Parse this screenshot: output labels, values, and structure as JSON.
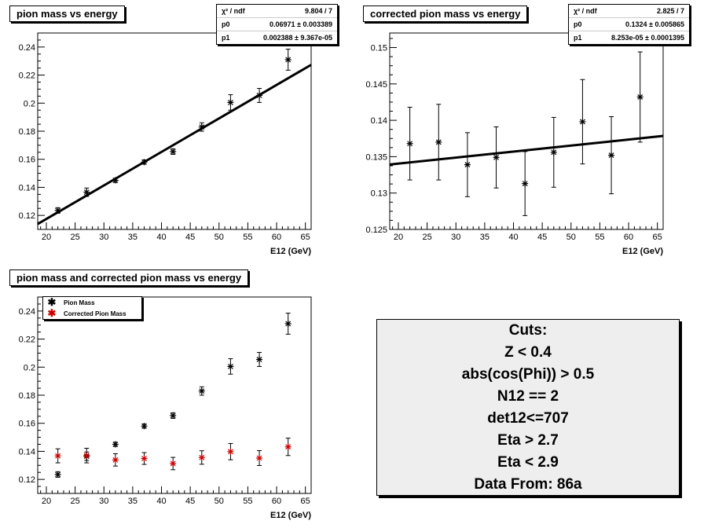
{
  "chart_data": [
    {
      "id": "chart1",
      "type": "scatter",
      "title": "pion mass vs energy",
      "xlabel": "E12 (GeV)",
      "ylabel": "",
      "xlim": [
        18.5,
        66
      ],
      "ylim": [
        0.11,
        0.25
      ],
      "xticks": [
        20,
        25,
        30,
        35,
        40,
        45,
        50,
        55,
        60,
        65
      ],
      "yticks": [
        0.12,
        0.14,
        0.16,
        0.18,
        0.2,
        0.22,
        0.24
      ],
      "series": [
        {
          "color": "#000000",
          "x": [
            22,
            27,
            32,
            37,
            42,
            47,
            52,
            57,
            62
          ],
          "y": [
            0.1235,
            0.1365,
            0.145,
            0.158,
            0.1655,
            0.183,
            0.2005,
            0.2055,
            0.231
          ],
          "err": [
            0.002,
            0.003,
            0.0015,
            0.0015,
            0.002,
            0.003,
            0.0055,
            0.005,
            0.0075
          ]
        }
      ],
      "fit": {
        "p0": 0.06971,
        "p1": 0.002388
      },
      "stats": [
        {
          "label": "χ² / ndf",
          "value": "9.804 / 7"
        },
        {
          "label": "p0",
          "value": "0.06971 ± 0.003389"
        },
        {
          "label": "p1",
          "value": "0.002388 ± 9.367e-05"
        }
      ]
    },
    {
      "id": "chart2",
      "type": "scatter",
      "title": "corrected pion mass vs energy",
      "xlabel": "E12 (GeV)",
      "ylabel": "",
      "xlim": [
        18.5,
        66
      ],
      "ylim": [
        0.125,
        0.152
      ],
      "xticks": [
        20,
        25,
        30,
        35,
        40,
        45,
        50,
        55,
        60,
        65
      ],
      "yticks": [
        0.125,
        0.13,
        0.135,
        0.14,
        0.145,
        0.15
      ],
      "series": [
        {
          "color": "#000000",
          "x": [
            22,
            27,
            32,
            37,
            42,
            47,
            52,
            57,
            62
          ],
          "y": [
            0.1368,
            0.137,
            0.1339,
            0.1349,
            0.1313,
            0.1356,
            0.1398,
            0.1352,
            0.1432
          ],
          "err": [
            0.005,
            0.0052,
            0.0044,
            0.0042,
            0.0044,
            0.0048,
            0.0058,
            0.0053,
            0.0062
          ]
        }
      ],
      "fit": {
        "p0": 0.1324,
        "p1": 8.253e-05
      },
      "stats": [
        {
          "label": "χ² / ndf",
          "value": "2.825 / 7"
        },
        {
          "label": "p0",
          "value": "0.1324 ± 0.005865"
        },
        {
          "label": "p1",
          "value": "8.253e-05 ± 0.0001395"
        }
      ]
    },
    {
      "id": "chart3",
      "type": "scatter",
      "title": "pion mass and corrected pion mass vs energy",
      "xlabel": "E12 (GeV)",
      "ylabel": "",
      "xlim": [
        18.5,
        66
      ],
      "ylim": [
        0.11,
        0.25
      ],
      "xticks": [
        20,
        25,
        30,
        35,
        40,
        45,
        50,
        55,
        60,
        65
      ],
      "yticks": [
        0.12,
        0.14,
        0.16,
        0.18,
        0.2,
        0.22,
        0.24
      ],
      "series": [
        {
          "name": "Pion Mass",
          "color": "#000000",
          "x": [
            22,
            27,
            32,
            37,
            42,
            47,
            52,
            57,
            62
          ],
          "y": [
            0.1235,
            0.1365,
            0.145,
            0.158,
            0.1655,
            0.183,
            0.2005,
            0.2055,
            0.231
          ],
          "err": [
            0.002,
            0.003,
            0.0015,
            0.0015,
            0.002,
            0.003,
            0.0055,
            0.005,
            0.0075
          ]
        },
        {
          "name": "Corrected Pion Mass",
          "color": "#cc0000",
          "x": [
            22,
            27,
            32,
            37,
            42,
            47,
            52,
            57,
            62
          ],
          "y": [
            0.1368,
            0.137,
            0.1339,
            0.1349,
            0.1313,
            0.1356,
            0.1398,
            0.1352,
            0.1432
          ],
          "err": [
            0.005,
            0.0052,
            0.0044,
            0.0042,
            0.0044,
            0.0048,
            0.0058,
            0.0053,
            0.0062
          ]
        }
      ],
      "legend": "top-left"
    }
  ],
  "cuts": {
    "lines": [
      "Cuts:",
      "Z < 0.4",
      "abs(cos(Phi)) > 0.5",
      "N12 == 2",
      "det12<=707",
      "Eta > 2.7",
      "Eta < 2.9",
      "Data From: 86a"
    ]
  }
}
